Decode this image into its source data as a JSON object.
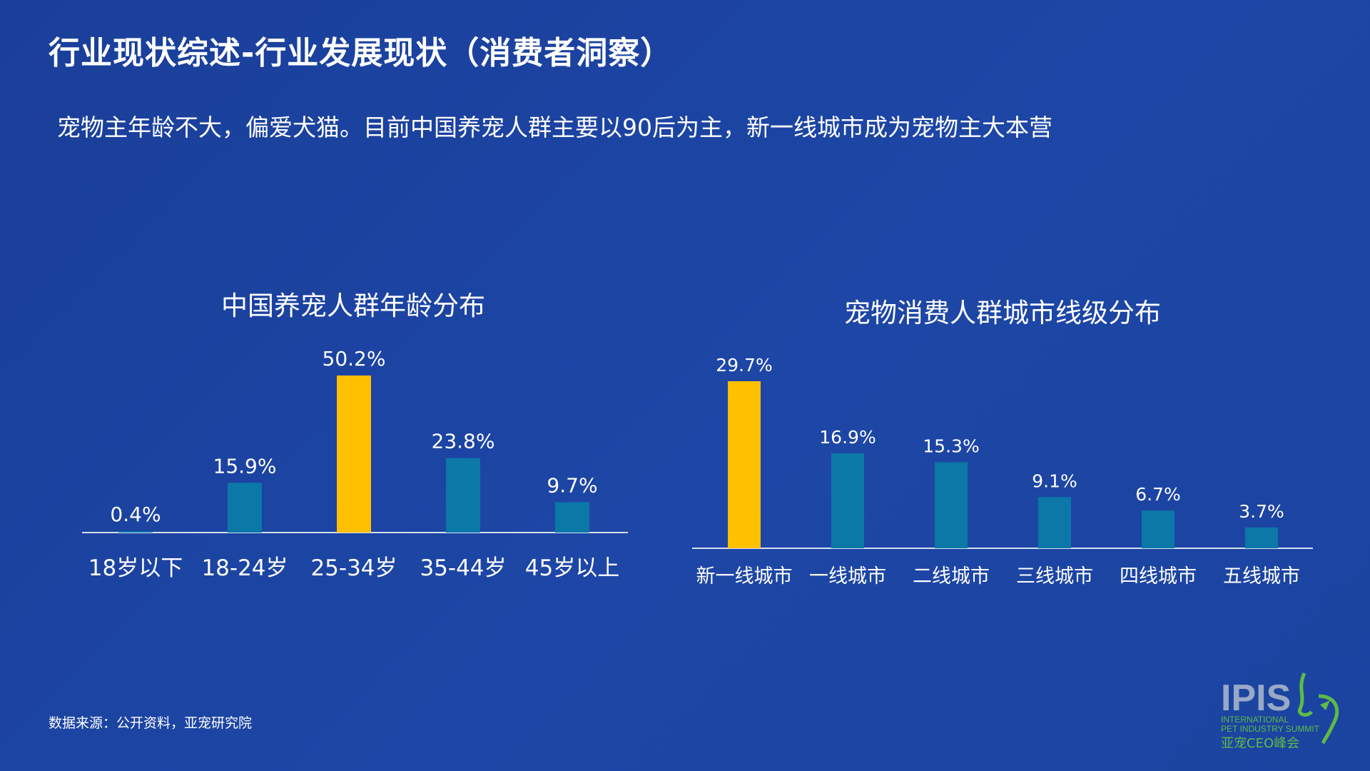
{
  "title": "行业现状综述-行业发展现状（消费者洞察）",
  "subtitle": "宠物主年龄不大，偏爱犬猫。目前中国养宠人群主要以90后为主，新一线城市成为宠物主大本营",
  "source": "数据来源：公开资料，亚宠研究院",
  "logo": {
    "main": "IPIS",
    "line1": "INTERNATIONAL",
    "line2": "PET INDUSTRY SUMMIT",
    "cn": "亚宠CEO峰会"
  },
  "colors": {
    "background": "#1c44a3",
    "bar_default": "#0b78a8",
    "bar_highlight": "#ffc000",
    "axis": "#d7e0ef",
    "logo_green": "#5dbb46"
  },
  "chart_data": [
    {
      "type": "bar",
      "title": "中国养宠人群年龄分布",
      "categories": [
        "18岁以下",
        "18-24岁",
        "25-34岁",
        "35-44岁",
        "45岁以上"
      ],
      "values": [
        0.4,
        15.9,
        50.2,
        23.8,
        9.7
      ],
      "labels": [
        "0.4%",
        "15.9%",
        "50.2%",
        "23.8%",
        "9.7%"
      ],
      "highlight_index": 2,
      "unit": "%",
      "ylim": [
        0,
        50.2
      ]
    },
    {
      "type": "bar",
      "title": "宠物消费人群城市线级分布",
      "categories": [
        "新一线城市",
        "一线城市",
        "二线城市",
        "三线城市",
        "四线城市",
        "五线城市"
      ],
      "values": [
        29.7,
        16.9,
        15.3,
        9.1,
        6.7,
        3.7
      ],
      "labels": [
        "29.7%",
        "16.9%",
        "15.3%",
        "9.1%",
        "6.7%",
        "3.7%"
      ],
      "highlight_index": 0,
      "unit": "%",
      "ylim": [
        0,
        29.7
      ]
    }
  ]
}
